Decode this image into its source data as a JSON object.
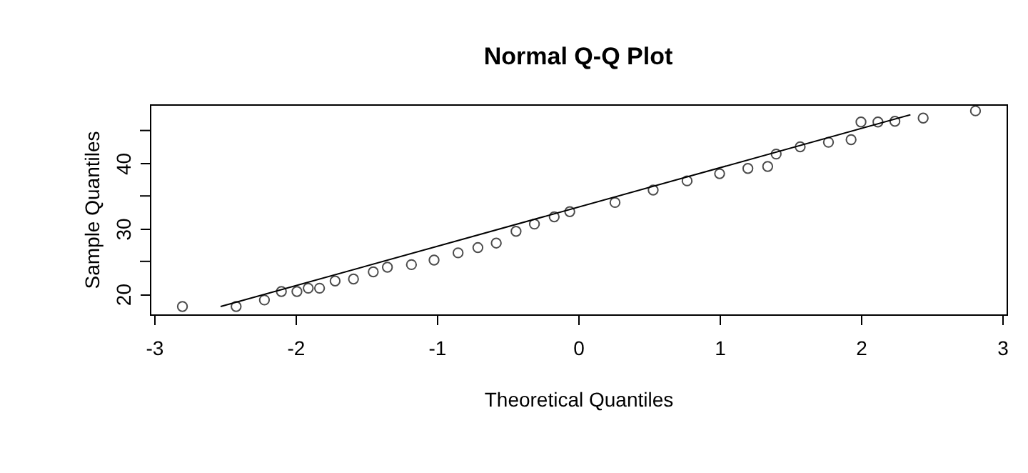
{
  "chart_data": {
    "type": "scatter",
    "title": "Normal Q-Q Plot",
    "xlabel": "Theoretical Quantiles",
    "ylabel": "Sample Quantiles",
    "xlim": [
      -3.03,
      3.03
    ],
    "xticks": [
      -3,
      -2,
      -1,
      0,
      1,
      2,
      3
    ],
    "ylim": [
      16.9,
      49
    ],
    "yticks": [
      20,
      {
        "value": 25,
        "label": null
      },
      30,
      {
        "value": 35,
        "label": null
      },
      40,
      {
        "value": 45,
        "label": null
      }
    ],
    "grid": false,
    "series": [
      {
        "color": "#000000",
        "marker": "circle",
        "x": [
          -2.8,
          -2.42,
          -2.22,
          -2.1,
          -1.99,
          -1.91,
          -1.83,
          -1.72,
          -1.59,
          -1.45,
          -1.35,
          -1.18,
          -1.02,
          -0.85,
          -0.71,
          -0.58,
          -0.44,
          -0.31,
          -0.17,
          -0.06,
          0.26,
          0.53,
          0.77,
          1.0,
          1.2,
          1.34,
          1.4,
          1.57,
          1.77,
          1.93,
          2.0,
          2.12,
          2.24,
          2.44,
          2.81
        ],
        "values": [
          18.1,
          18.1,
          19.1,
          20.4,
          20.4,
          20.9,
          20.9,
          22.0,
          22.3,
          23.4,
          24.1,
          24.5,
          25.2,
          26.3,
          27.1,
          27.8,
          29.6,
          30.7,
          31.8,
          32.6,
          34.0,
          35.9,
          37.3,
          38.4,
          39.2,
          39.5,
          41.4,
          42.5,
          43.2,
          43.6,
          46.3,
          46.3,
          46.4,
          46.9,
          48.0
        ]
      },
      {
        "type": "line",
        "marker": "none",
        "color": "#000000",
        "x": [
          -2.53,
          2.35
        ],
        "values": [
          18.1,
          47.4
        ]
      }
    ]
  }
}
